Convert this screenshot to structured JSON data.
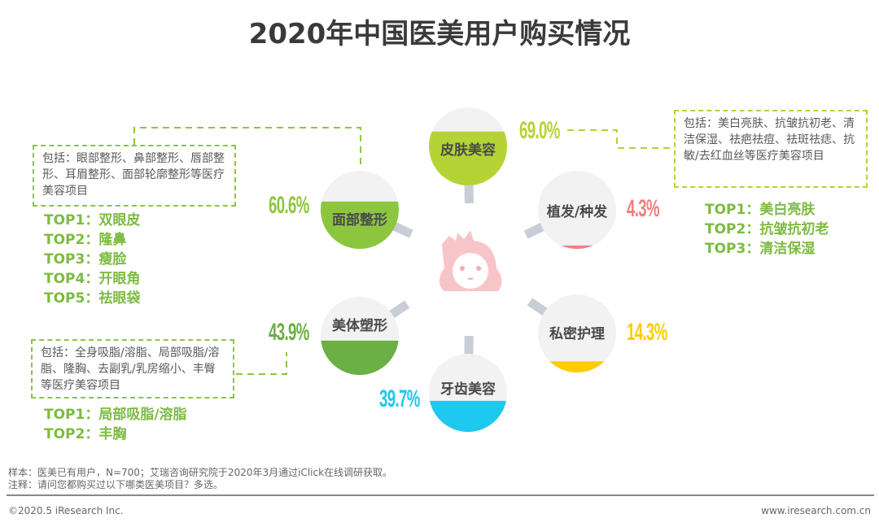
{
  "title": "2020年中国医美用户购买情况",
  "categories": [
    {
      "id": "skin",
      "label": "皮肤美容",
      "value": 69.0,
      "value_label": "69.0%",
      "color": "#b5d334"
    },
    {
      "id": "face",
      "label": "面部整形",
      "value": 60.6,
      "value_label": "60.6%",
      "color": "#8cc63f"
    },
    {
      "id": "hair",
      "label": "植发/种发",
      "value": 4.3,
      "value_label": "4.3%",
      "color": "#f08080"
    },
    {
      "id": "body",
      "label": "美体塑形",
      "value": 43.9,
      "value_label": "43.9%",
      "color": "#6ab044"
    },
    {
      "id": "private",
      "label": "私密护理",
      "value": 14.3,
      "value_label": "14.3%",
      "color": "#ffcc00"
    },
    {
      "id": "teeth",
      "label": "牙齿美容",
      "value": 39.7,
      "value_label": "39.7%",
      "color": "#1fc8ef"
    }
  ],
  "callouts": {
    "face": {
      "desc": "包括：眼部整形、鼻部整形、唇部整形、耳眉整形、面部轮廓整形等医疗美容项目",
      "tops": [
        "TOP1：双眼皮",
        "TOP2：隆鼻",
        "TOP3：瘦脸",
        "TOP4：开眼角",
        "TOP5：祛眼袋"
      ]
    },
    "body": {
      "desc": "包括：全身吸脂/溶脂、局部吸脂/溶脂、隆胸、去副乳/乳房缩小、丰臀等医疗美容项目",
      "tops": [
        "TOP1：局部吸脂/溶脂",
        "TOP2：丰胸"
      ]
    },
    "skin": {
      "desc": "包括：美白亮肤、抗皱抗初老、清洁保湿、祛疤祛痘、祛斑祛痣、抗敏/去红血丝等医疗美容项目",
      "tops": [
        "TOP1：美白亮肤",
        "TOP2：抗皱抗初老",
        "TOP3：清洁保湿"
      ]
    }
  },
  "notes": {
    "sample": "样本：医美已有用户，N=700；艾瑞咨询研究院于2020年3月通过iClick在线调研获取。",
    "remark": "注释：请问您都购买过以下哪类医美项目？多选。"
  },
  "footer": {
    "copyright": "©2020.5 iResearch Inc.",
    "site": "www.iresearch.com.cn"
  },
  "colors": {
    "circle_bg": "#f2f2f2",
    "connector": "#c8cdd6",
    "face_icon": "#f7c5c8",
    "dash_green": "#8cc63f"
  }
}
